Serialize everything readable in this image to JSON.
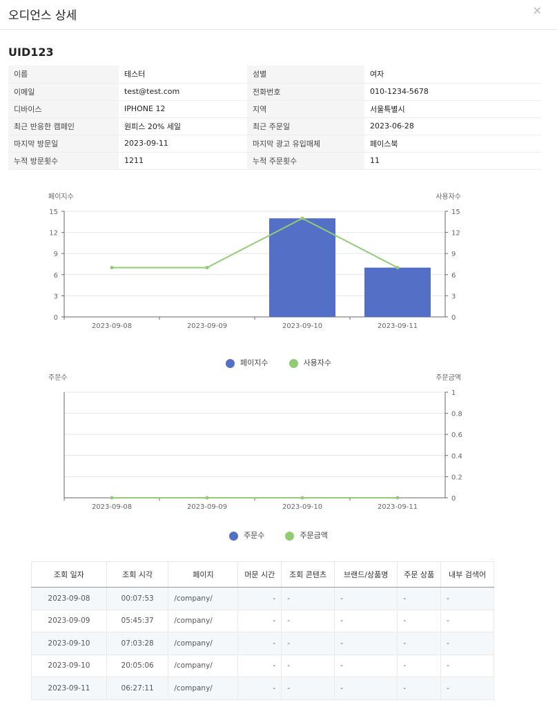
{
  "header": {
    "title": "오디언스 상세",
    "close_icon": "close-icon"
  },
  "uid": "UID123",
  "info": [
    [
      "이름",
      "테스터",
      "성별",
      "여자"
    ],
    [
      "이메일",
      "test@test.com",
      "전화번호",
      "010-1234-5678"
    ],
    [
      "디바이스",
      "IPHONE 12",
      "지역",
      "서울특별시"
    ],
    [
      "최근 반응한 캠페인",
      "원피스 20% 세일",
      "최근 주문일",
      "2023-06-28"
    ],
    [
      "마지막 방문일",
      "2023-09-11",
      "마지막 광고 유입매체",
      "페이스북"
    ],
    [
      "누적 방문횟수",
      "1211",
      "누적 주문횟수",
      "11"
    ]
  ],
  "chart_data": [
    {
      "type": "bar+line",
      "categories": [
        "2023-09-08",
        "2023-09-09",
        "2023-09-10",
        "2023-09-11"
      ],
      "y_left_label": "페이지수",
      "y_right_label": "사용자수",
      "ylim_left": [
        0,
        15
      ],
      "ylim_right": [
        0,
        15
      ],
      "left_ticks": [
        "0",
        "3",
        "6",
        "9",
        "12",
        "15"
      ],
      "right_ticks": [
        "0",
        "3",
        "6",
        "9",
        "12",
        "15"
      ],
      "series": [
        {
          "name": "페이지수",
          "type": "bar",
          "color": "#5470c6",
          "values": [
            0,
            0,
            14,
            7
          ]
        },
        {
          "name": "사용자수",
          "type": "line",
          "color": "#91cc75",
          "values": [
            7,
            7,
            14,
            7
          ]
        }
      ],
      "legend": "bottom",
      "grid": true
    },
    {
      "type": "bar+line",
      "categories": [
        "2023-09-08",
        "2023-09-09",
        "2023-09-10",
        "2023-09-11"
      ],
      "y_left_label": "주문수",
      "y_right_label": "주문금액",
      "ylim_right": [
        0,
        1
      ],
      "left_ticks": [],
      "right_ticks": [
        "0",
        "0.2",
        "0.4",
        "0.6",
        "0.8",
        "1"
      ],
      "series": [
        {
          "name": "주문수",
          "type": "bar",
          "color": "#5470c6",
          "values": [
            0,
            0,
            0,
            0
          ]
        },
        {
          "name": "주문금액",
          "type": "line",
          "color": "#91cc75",
          "values": [
            0,
            0,
            0,
            0
          ]
        }
      ],
      "legend": "bottom",
      "grid": true
    }
  ],
  "log": {
    "columns": [
      "조회 일자",
      "조회 시각",
      "페이지",
      "머문 시간",
      "조회 콘텐츠",
      "브랜드/상품명",
      "주문 상품",
      "내부 검색어"
    ],
    "rows": [
      [
        "2023-09-08",
        "00:07:53",
        "/company/",
        "-",
        "-",
        "-",
        "-",
        "-"
      ],
      [
        "2023-09-09",
        "05:45:37",
        "/company/",
        "-",
        "-",
        "-",
        "-",
        "-"
      ],
      [
        "2023-09-10",
        "07:03:28",
        "/company/",
        "-",
        "-",
        "-",
        "-",
        "-"
      ],
      [
        "2023-09-10",
        "20:05:06",
        "/company/",
        "-",
        "-",
        "-",
        "-",
        "-"
      ],
      [
        "2023-09-11",
        "06:27:11",
        "/company/",
        "-",
        "-",
        "-",
        "-",
        "-"
      ]
    ]
  }
}
